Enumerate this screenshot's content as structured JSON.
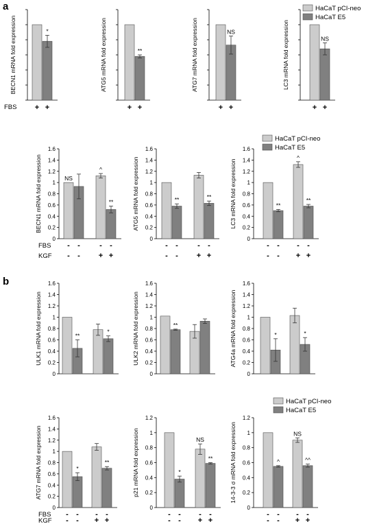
{
  "panels": {
    "a": "a",
    "b": "b"
  },
  "colors": {
    "light": "#cccccc",
    "dark": "#808080",
    "stroke": "#4d4d4d"
  },
  "legends": [
    {
      "items": [
        "HaCaT pCI-neo",
        "HaCaT E5"
      ]
    },
    {
      "items": [
        "HaCaT pCI-neo",
        "HaCaT E5"
      ]
    },
    {
      "items": [
        "HaCaT pCI-neo",
        "HaCaT E5"
      ]
    }
  ],
  "row_labels": {
    "fbs": "FBS",
    "kgf": "KGF"
  },
  "conditions": {
    "fbs_only": {
      "fbs": [
        "+",
        "+"
      ]
    },
    "four_group": {
      "fbs": [
        "-",
        "-",
        "-",
        "-"
      ],
      "kgf": [
        "-",
        "-",
        "+",
        "+"
      ]
    }
  },
  "chart_data": [
    {
      "type": "bar",
      "ylabel": "BECN1 mRNA fold expression",
      "ylim": [
        0,
        1.2
      ],
      "ticks": [],
      "categories": [
        "FBS +"
      ],
      "series": [
        {
          "name": "HaCaT pCI-neo",
          "values": [
            1.0
          ],
          "err": [
            0
          ]
        },
        {
          "name": "HaCaT E5",
          "values": [
            0.78
          ],
          "err": [
            0.08
          ]
        }
      ],
      "annotations": [
        "",
        "*"
      ]
    },
    {
      "type": "bar",
      "ylabel": "ATG5 mRNA fold expression",
      "ylim": [
        0,
        1.2
      ],
      "ticks": [],
      "categories": [
        "FBS +"
      ],
      "series": [
        {
          "name": "HaCaT pCI-neo",
          "values": [
            1.0
          ],
          "err": [
            0
          ]
        },
        {
          "name": "HaCaT E5",
          "values": [
            0.58
          ],
          "err": [
            0.02
          ]
        }
      ],
      "annotations": [
        "",
        "**"
      ]
    },
    {
      "type": "bar",
      "ylabel": "ATG7 mRNA fold expression",
      "ylim": [
        0,
        1.2
      ],
      "ticks": [],
      "categories": [
        "FBS +"
      ],
      "series": [
        {
          "name": "HaCaT pCI-neo",
          "values": [
            1.0
          ],
          "err": [
            0
          ]
        },
        {
          "name": "HaCaT E5",
          "values": [
            0.73
          ],
          "err": [
            0.12
          ]
        }
      ],
      "annotations": [
        "",
        "NS"
      ]
    },
    {
      "type": "bar",
      "ylabel": "LC3 mRNA fold expression",
      "ylim": [
        0,
        1.2
      ],
      "ticks": [],
      "categories": [
        "FBS +"
      ],
      "series": [
        {
          "name": "HaCaT pCI-neo",
          "values": [
            1.0
          ],
          "err": [
            0
          ]
        },
        {
          "name": "HaCaT E5",
          "values": [
            0.68
          ],
          "err": [
            0.08
          ]
        }
      ],
      "annotations": [
        "",
        "NS"
      ]
    },
    {
      "type": "bar",
      "ylabel": "BECN1 mRNA fold expression",
      "ylim": [
        0,
        1.6
      ],
      "ticks": [
        "0",
        "0.2",
        "0.4",
        "0.6",
        "0.8",
        "1",
        "1.2",
        "1.4",
        "1.6"
      ],
      "categories": [
        "- KGF",
        "+ KGF"
      ],
      "series": [
        {
          "name": "HaCaT pCI-neo",
          "values": [
            1.0,
            1.12
          ],
          "err": [
            0,
            0.04
          ]
        },
        {
          "name": "HaCaT E5",
          "values": [
            0.93,
            0.52
          ],
          "err": [
            0.22,
            0.06
          ]
        }
      ],
      "annotations": [
        "NS",
        "",
        "^",
        "**"
      ]
    },
    {
      "type": "bar",
      "ylabel": "ATG5 mRNA fold expression",
      "ylim": [
        0,
        1.6
      ],
      "ticks": [
        "0",
        "0.2",
        "0.4",
        "0.6",
        "0.8",
        "1",
        "1.2",
        "1.4",
        "1.6"
      ],
      "categories": [
        "- KGF",
        "+ KGF"
      ],
      "series": [
        {
          "name": "HaCaT pCI-neo",
          "values": [
            1.0,
            1.13
          ],
          "err": [
            0,
            0.05
          ]
        },
        {
          "name": "HaCaT E5",
          "values": [
            0.58,
            0.63
          ],
          "err": [
            0.04,
            0.04
          ]
        }
      ],
      "annotations": [
        "",
        "**",
        "",
        "**"
      ]
    },
    {
      "type": "bar",
      "ylabel": "LC3 mRNA fold expression",
      "ylim": [
        0,
        1.6
      ],
      "ticks": [
        "0",
        "0.2",
        "0.4",
        "0.6",
        "0.8",
        "1",
        "1.2",
        "1.4",
        "1.6"
      ],
      "categories": [
        "- KGF",
        "+ KGF"
      ],
      "series": [
        {
          "name": "HaCaT pCI-neo",
          "values": [
            1.0,
            1.32
          ],
          "err": [
            0,
            0.05
          ]
        },
        {
          "name": "HaCaT E5",
          "values": [
            0.5,
            0.58
          ],
          "err": [
            0.02,
            0.03
          ]
        }
      ],
      "annotations": [
        "",
        "**",
        "^",
        "**"
      ]
    },
    {
      "type": "bar",
      "ylabel": "ULK1 mRNA fold expression",
      "ylim": [
        0,
        1.6
      ],
      "ticks": [
        "0",
        "0.2",
        "0.4",
        "0.6",
        "0.8",
        "1",
        "1.2",
        "1.4",
        "1.6"
      ],
      "categories": [
        "- KGF",
        "+ KGF"
      ],
      "series": [
        {
          "name": "HaCaT pCI-neo",
          "values": [
            1.0,
            0.78
          ],
          "err": [
            0,
            0.1
          ]
        },
        {
          "name": "HaCaT E5",
          "values": [
            0.45,
            0.62
          ],
          "err": [
            0.15,
            0.05
          ]
        }
      ],
      "annotations": [
        "",
        "**",
        "",
        "*"
      ]
    },
    {
      "type": "bar",
      "ylabel": "ULK2 mRNA fold expression",
      "ylim": [
        0,
        1.6
      ],
      "ticks": [
        "0",
        "0.2",
        "0.4",
        "0.6",
        "0.8",
        "1",
        "1.2",
        "1.4",
        "1.6"
      ],
      "categories": [
        "- KGF",
        "+ KGF"
      ],
      "series": [
        {
          "name": "HaCaT pCI-neo",
          "values": [
            1.02,
            0.75
          ],
          "err": [
            0,
            0.12
          ]
        },
        {
          "name": "HaCaT E5",
          "values": [
            0.78,
            0.93
          ],
          "err": [
            0.01,
            0.04
          ]
        }
      ],
      "annotations": [
        "",
        "**",
        "",
        ""
      ]
    },
    {
      "type": "bar",
      "ylabel": "ATG4a mRNA fold expression",
      "ylim": [
        0,
        1.6
      ],
      "ticks": [
        "0",
        "0.2",
        "0.4",
        "0.6",
        "0.8",
        "1",
        "1.2",
        "1.4",
        "1.6"
      ],
      "categories": [
        "- KGF",
        "+ KGF"
      ],
      "series": [
        {
          "name": "HaCaT pCI-neo",
          "values": [
            1.0,
            1.03
          ],
          "err": [
            0,
            0.13
          ]
        },
        {
          "name": "HaCaT E5",
          "values": [
            0.42,
            0.52
          ],
          "err": [
            0.2,
            0.12
          ]
        }
      ],
      "annotations": [
        "",
        "*",
        "",
        "*"
      ]
    },
    {
      "type": "bar",
      "ylabel": "ATG7 mRNA fold expression",
      "ylim": [
        0,
        1.6
      ],
      "ticks": [
        "0",
        "0.2",
        "0.4",
        "0.6",
        "0.8",
        "1",
        "1.2",
        "1.4",
        "1.6"
      ],
      "categories": [
        "- KGF",
        "+ KGF"
      ],
      "series": [
        {
          "name": "HaCaT pCI-neo",
          "values": [
            1.0,
            1.08
          ],
          "err": [
            0,
            0.06
          ]
        },
        {
          "name": "HaCaT E5",
          "values": [
            0.55,
            0.7
          ],
          "err": [
            0.07,
            0.03
          ]
        }
      ],
      "annotations": [
        "",
        "*",
        "",
        "**"
      ]
    },
    {
      "type": "bar",
      "ylabel": "p21 mRNA fold expression",
      "ylim": [
        0,
        1.2
      ],
      "ticks": [
        "0",
        "0.2",
        "0.4",
        "0.6",
        "0.8",
        "1",
        "1.2"
      ],
      "categories": [
        "- KGF",
        "+ KGF"
      ],
      "series": [
        {
          "name": "HaCaT pCI-neo",
          "values": [
            1.0,
            0.78
          ],
          "err": [
            0,
            0.07
          ]
        },
        {
          "name": "HaCaT E5",
          "values": [
            0.38,
            0.59
          ],
          "err": [
            0.04,
            0.01
          ]
        }
      ],
      "annotations": [
        "",
        "*",
        "NS",
        "**"
      ]
    },
    {
      "type": "bar",
      "ylabel": "14-3-3 σ mRNA fold expression",
      "ylim": [
        0,
        1.2
      ],
      "ticks": [
        "0",
        "0.2",
        "0.4",
        "0.6",
        "0.8",
        "1",
        "1.2"
      ],
      "categories": [
        "- KGF",
        "+ KGF"
      ],
      "series": [
        {
          "name": "HaCaT pCI-neo",
          "values": [
            1.0,
            0.9
          ],
          "err": [
            0,
            0.03
          ]
        },
        {
          "name": "HaCaT E5",
          "values": [
            0.55,
            0.56
          ],
          "err": [
            0.01,
            0.02
          ]
        }
      ],
      "annotations": [
        "",
        "^",
        "NS",
        "^^"
      ]
    }
  ]
}
